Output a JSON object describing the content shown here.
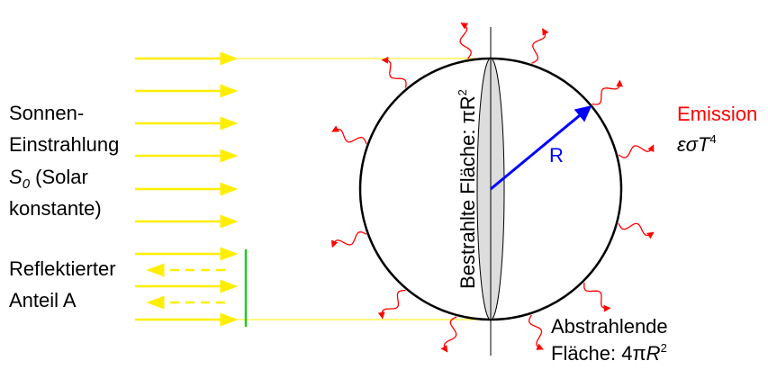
{
  "incoming": {
    "lines": [
      "Sonnen-",
      "Einstrahlung"
    ],
    "symbol": "S",
    "subscript": "0",
    "rest": " (Solar",
    "last": "konstante)"
  },
  "reflected": {
    "lines": [
      "Reflektierter",
      "Anteil A"
    ]
  },
  "emission": {
    "title": "Emission",
    "formula": "εσT",
    "superscript": "4"
  },
  "radius_label": "R",
  "irradiated": {
    "text": "Bestrahlte Fläche: πR",
    "superscript": "2"
  },
  "radiating": {
    "line1": "Abstrahlende",
    "text": "Fläche: 4π",
    "symbol": "R",
    "superscript": "2"
  }
}
